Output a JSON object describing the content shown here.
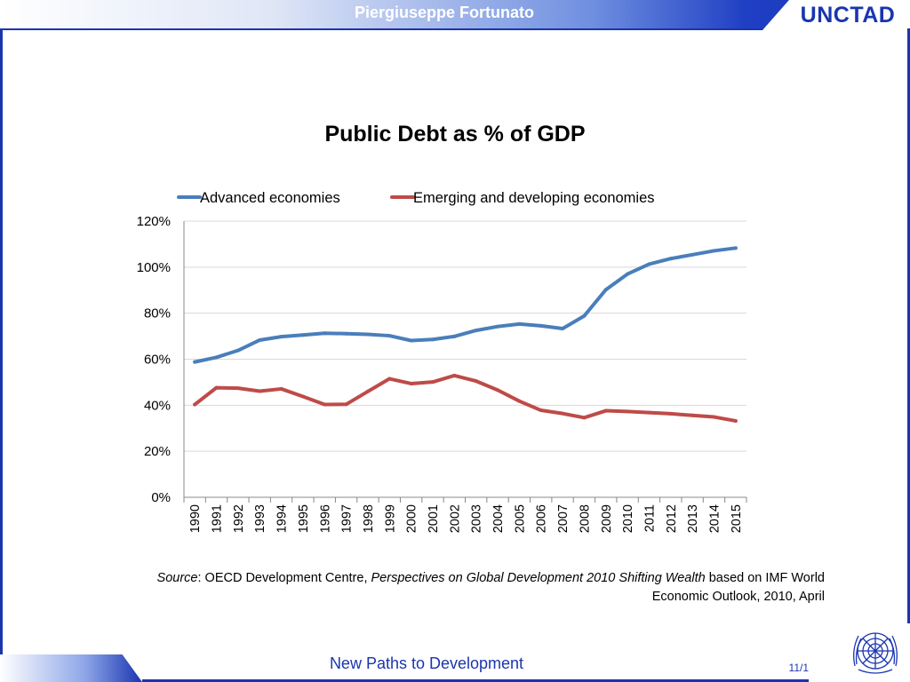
{
  "header": {
    "presenter": "Piergiuseppe Fortunato",
    "logo": "UNCTAD"
  },
  "chart_data": {
    "type": "line",
    "title": "Public Debt as % of GDP",
    "xlabel": "",
    "ylabel": "",
    "categories": [
      "1990",
      "1991",
      "1992",
      "1993",
      "1994",
      "1995",
      "1996",
      "1997",
      "1998",
      "1999",
      "2000",
      "2001",
      "2002",
      "2003",
      "2004",
      "2005",
      "2006",
      "2007",
      "2008",
      "2009",
      "2010",
      "2011",
      "2012",
      "2013",
      "2014",
      "2015"
    ],
    "ylim": [
      0,
      120
    ],
    "yticks": [
      0,
      20,
      40,
      60,
      80,
      100,
      120
    ],
    "ytick_labels": [
      "0%",
      "20%",
      "40%",
      "60%",
      "80%",
      "100%",
      "120%"
    ],
    "grid": "horizontal",
    "legend_position": "top",
    "series": [
      {
        "name": "Advanced economies",
        "color": "#4a7ebb",
        "values": [
          58.8,
          60.8,
          63.8,
          68.3,
          69.8,
          70.5,
          71.3,
          71.1,
          70.8,
          70.2,
          68.1,
          68.6,
          69.9,
          72.5,
          74.2,
          75.3,
          74.5,
          73.3,
          78.8,
          90.2,
          97.0,
          101.3,
          103.7,
          105.4,
          107.1,
          108.3
        ]
      },
      {
        "name": "Emerging and developing economies",
        "color": "#be4b48",
        "values": [
          40.3,
          47.6,
          47.4,
          46.1,
          47.1,
          43.8,
          40.3,
          40.4,
          46.0,
          51.5,
          49.4,
          50.1,
          52.9,
          50.5,
          46.6,
          41.8,
          37.8,
          36.4,
          34.6,
          37.6,
          37.3,
          36.8,
          36.3,
          35.6,
          34.9,
          33.2
        ]
      }
    ]
  },
  "source": {
    "label": "Source",
    "text1": ": OECD Development Centre, ",
    "publication": "Perspectives on Global Development 2010 Shifting Wealth",
    "text2": " based on IMF World Economic Outlook, 2010, April"
  },
  "footer": {
    "text": "New Paths to Development",
    "page": "11/1"
  },
  "icons": {
    "emblem": "un-emblem-icon"
  },
  "colors": {
    "brand": "#1a35b0"
  }
}
